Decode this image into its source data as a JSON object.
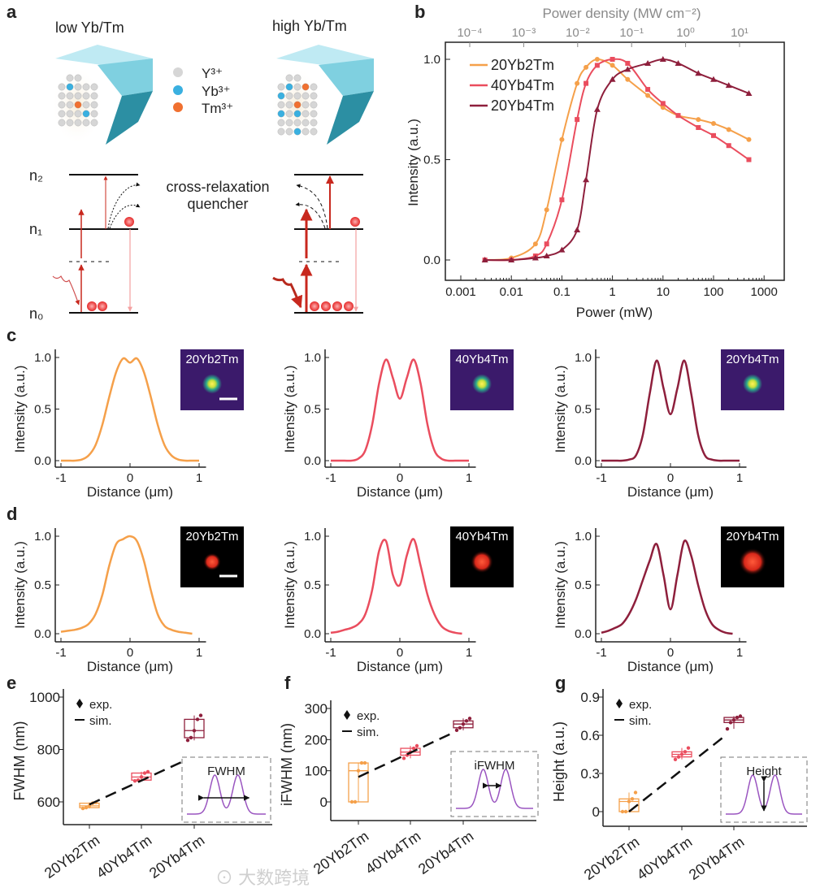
{
  "panel_letters": {
    "a": "a",
    "b": "b",
    "c": "c",
    "d": "d",
    "e": "e",
    "f": "f",
    "g": "g"
  },
  "panel_a": {
    "low_title": "low Yb/Tm",
    "high_title": "high Yb/Tm",
    "legend": [
      "Y³⁺",
      "Yb³⁺",
      "Tm³⁺"
    ],
    "legend_colors": [
      "#d6d6d6",
      "#3ab0e0",
      "#f07030"
    ],
    "levels": [
      "n₂",
      "n₁",
      "n₀"
    ],
    "annotation_line1": "cross-relaxation",
    "annotation_line2": "quencher"
  },
  "watermark": "大数跨境",
  "colors": {
    "20Yb2Tm": "#f5a04a",
    "40Yb4Tm": "#ea4d5e",
    "20Yb4Tm": "#8e1f3c"
  },
  "chart_data": [
    {
      "id": "b",
      "type": "line",
      "xlabel": "Power (mW)",
      "ylabel": "Intensity (a.u.)",
      "top_xlabel": "Power density (MW cm⁻²)",
      "xscale": "log",
      "xlim": [
        0.002,
        1000
      ],
      "ylim": [
        -0.1,
        1.1
      ],
      "xticks": [
        "0.001",
        "0.01",
        "0.1",
        "1",
        "10",
        "100",
        "1000"
      ],
      "top_xticks": [
        "10⁻⁴",
        "10⁻³",
        "10⁻²",
        "10⁻¹",
        "10⁰",
        "10¹"
      ],
      "yticks": [
        "0.0",
        "0.5",
        "1.0"
      ],
      "legend_position": "top-left",
      "x": [
        0.003,
        0.01,
        0.03,
        0.05,
        0.1,
        0.2,
        0.3,
        0.5,
        1,
        2,
        5,
        10,
        20,
        50,
        100,
        200,
        500
      ],
      "series": [
        {
          "name": "20Yb2Tm",
          "marker": "circle",
          "values": [
            0,
            0.01,
            0.08,
            0.25,
            0.6,
            0.88,
            0.96,
            1.0,
            0.97,
            0.9,
            0.82,
            0.76,
            0.72,
            0.7,
            0.68,
            0.65,
            0.6
          ]
        },
        {
          "name": "40Yb4Tm",
          "marker": "square",
          "values": [
            0,
            0,
            0.02,
            0.08,
            0.3,
            0.7,
            0.88,
            0.97,
            1.0,
            0.98,
            0.85,
            0.78,
            0.72,
            0.66,
            0.62,
            0.57,
            0.5
          ]
        },
        {
          "name": "20Yb4Tm",
          "marker": "triangle",
          "values": [
            0,
            0,
            0.01,
            0.02,
            0.05,
            0.15,
            0.4,
            0.75,
            0.9,
            0.95,
            0.98,
            1.0,
            0.98,
            0.93,
            0.9,
            0.87,
            0.83
          ]
        }
      ]
    },
    {
      "id": "c",
      "type": "line",
      "xlabel": "Distance (μm)",
      "ylabel": "Intensity (a.u.)",
      "xticks": [
        "-1",
        "0",
        "1"
      ],
      "yticks": [
        "0.0",
        "0.5",
        "1.0"
      ],
      "xlim": [
        -1.1,
        1.1
      ],
      "ylim": [
        0,
        1
      ],
      "x": [
        -1,
        -0.9,
        -0.8,
        -0.7,
        -0.6,
        -0.5,
        -0.4,
        -0.3,
        -0.2,
        -0.1,
        0,
        0.1,
        0.2,
        0.3,
        0.4,
        0.5,
        0.6,
        0.7,
        0.8,
        0.9,
        1
      ],
      "series": [
        {
          "name": "20Yb2Tm",
          "inset": "20Yb2Tm",
          "values": [
            0,
            0,
            0,
            0.01,
            0.05,
            0.15,
            0.35,
            0.62,
            0.86,
            0.99,
            0.95,
            0.99,
            0.86,
            0.62,
            0.35,
            0.15,
            0.05,
            0.01,
            0,
            0,
            0
          ]
        },
        {
          "name": "40Yb4Tm",
          "inset": "40Yb4Tm",
          "values": [
            0,
            0,
            0,
            0,
            0.02,
            0.1,
            0.35,
            0.75,
            0.98,
            0.8,
            0.6,
            0.8,
            0.98,
            0.75,
            0.35,
            0.1,
            0.02,
            0,
            0,
            0,
            0
          ]
        },
        {
          "name": "20Yb4Tm",
          "inset": "20Yb4Tm",
          "values": [
            0,
            0,
            0,
            0,
            0.01,
            0.05,
            0.25,
            0.65,
            0.97,
            0.7,
            0.45,
            0.7,
            0.97,
            0.65,
            0.25,
            0.05,
            0.01,
            0,
            0,
            0,
            0
          ]
        }
      ]
    },
    {
      "id": "d",
      "type": "line",
      "xlabel": "Distance (μm)",
      "ylabel": "Intensity (a.u.)",
      "xticks": [
        "-1",
        "0",
        "1"
      ],
      "yticks": [
        "0.0",
        "0.5",
        "1.0"
      ],
      "xlim": [
        -1.1,
        1.1
      ],
      "ylim": [
        0,
        1
      ],
      "x": [
        -1,
        -0.9,
        -0.8,
        -0.7,
        -0.6,
        -0.5,
        -0.4,
        -0.3,
        -0.2,
        -0.1,
        0,
        0.1,
        0.2,
        0.3,
        0.4,
        0.5,
        0.6,
        0.7,
        0.8,
        0.9
      ],
      "series": [
        {
          "name": "20Yb2Tm",
          "inset": "20Yb2Tm",
          "values": [
            0.02,
            0.03,
            0.04,
            0.06,
            0.1,
            0.2,
            0.4,
            0.7,
            0.92,
            0.97,
            1.0,
            0.95,
            0.75,
            0.45,
            0.2,
            0.08,
            0.04,
            0.02,
            0.01,
            0
          ]
        },
        {
          "name": "40Yb4Tm",
          "inset": "40Yb4Tm",
          "values": [
            0.01,
            0.02,
            0.04,
            0.06,
            0.1,
            0.2,
            0.45,
            0.85,
            0.95,
            0.6,
            0.5,
            0.8,
            0.97,
            0.7,
            0.4,
            0.2,
            0.08,
            0.03,
            0.01,
            0
          ]
        },
        {
          "name": "20Yb4Tm",
          "inset": "20Yb4Tm",
          "values": [
            0.01,
            0.03,
            0.06,
            0.1,
            0.2,
            0.35,
            0.55,
            0.75,
            0.92,
            0.6,
            0.25,
            0.6,
            0.95,
            0.8,
            0.5,
            0.25,
            0.1,
            0.04,
            0.01,
            0
          ]
        }
      ]
    },
    {
      "id": "e",
      "type": "box",
      "ylabel": "FWHM (nm)",
      "ylim": [
        500,
        1000
      ],
      "yticks": [
        "600",
        "800",
        "1000"
      ],
      "categories": [
        "20Yb2Tm",
        "40Yb4Tm",
        "20Yb4Tm"
      ],
      "legend": [
        "exp.",
        "sim."
      ],
      "inset_label": "FWHM",
      "boxes": [
        {
          "q1": 578,
          "median": 585,
          "q3": 595,
          "min": 575,
          "max": 598
        },
        {
          "q1": 683,
          "median": 695,
          "q3": 710,
          "min": 680,
          "max": 715
        },
        {
          "q1": 845,
          "median": 872,
          "q3": 915,
          "min": 835,
          "max": 930
        }
      ],
      "sim": [
        590,
        760
      ]
    },
    {
      "id": "f",
      "type": "box",
      "ylabel": "iFWHM (nm)",
      "ylim": [
        -50,
        340
      ],
      "yticks": [
        "0",
        "100",
        "200",
        "300"
      ],
      "categories": [
        "20Yb2Tm",
        "40Yb4Tm",
        "20Yb4Tm"
      ],
      "legend": [
        "exp.",
        "sim."
      ],
      "inset_label": "iFWHM",
      "boxes": [
        {
          "q1": 0,
          "median": 100,
          "q3": 125,
          "min": 0,
          "max": 125
        },
        {
          "q1": 150,
          "median": 160,
          "q3": 172,
          "min": 140,
          "max": 180
        },
        {
          "q1": 238,
          "median": 250,
          "q3": 260,
          "min": 230,
          "max": 268
        }
      ],
      "sim": [
        80,
        225
      ]
    },
    {
      "id": "g",
      "type": "box",
      "ylabel": "Height (a.u.)",
      "ylim": [
        -0.05,
        0.95
      ],
      "yticks": [
        "0",
        "0.3",
        "0.6",
        "0.9"
      ],
      "categories": [
        "20Yb2Tm",
        "40Yb4Tm",
        "20Yb4Tm"
      ],
      "legend": [
        "exp.",
        "sim."
      ],
      "inset_label": "Height",
      "boxes": [
        {
          "q1": 0.0,
          "median": 0.08,
          "q3": 0.1,
          "min": 0,
          "max": 0.15
        },
        {
          "q1": 0.43,
          "median": 0.45,
          "q3": 0.47,
          "min": 0.41,
          "max": 0.5
        },
        {
          "q1": 0.7,
          "median": 0.72,
          "q3": 0.74,
          "min": 0.65,
          "max": 0.75
        }
      ],
      "sim": [
        0.0,
        0.6
      ]
    }
  ]
}
